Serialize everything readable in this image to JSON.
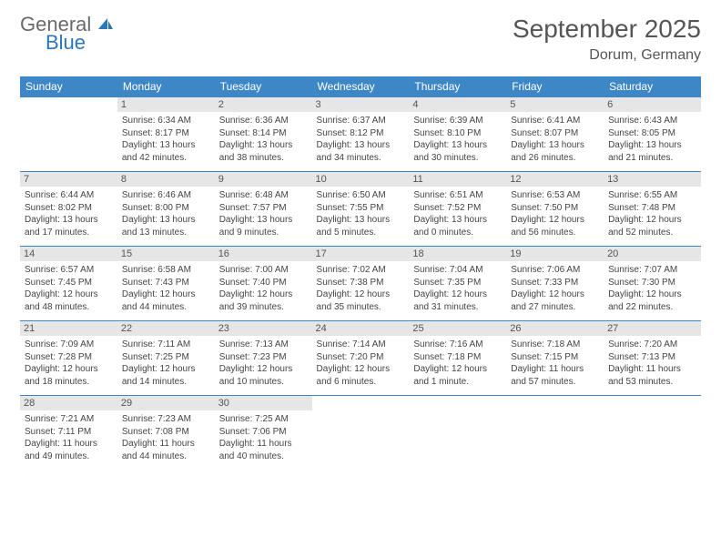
{
  "brand": {
    "line1": "General",
    "line2": "Blue",
    "color_gray": "#6a6a6a",
    "color_blue": "#2a76b8"
  },
  "header": {
    "title": "September 2025",
    "location": "Dorum, Germany"
  },
  "colors": {
    "header_bg": "#3e87c6",
    "header_fg": "#ffffff",
    "daynum_bg": "#e6e6e6",
    "border": "#3e87c6",
    "text": "#444444",
    "title": "#555555"
  },
  "dayNames": [
    "Sunday",
    "Monday",
    "Tuesday",
    "Wednesday",
    "Thursday",
    "Friday",
    "Saturday"
  ],
  "weeks": [
    [
      null,
      {
        "n": "1",
        "sr": "Sunrise: 6:34 AM",
        "ss": "Sunset: 8:17 PM",
        "d1": "Daylight: 13 hours",
        "d2": "and 42 minutes."
      },
      {
        "n": "2",
        "sr": "Sunrise: 6:36 AM",
        "ss": "Sunset: 8:14 PM",
        "d1": "Daylight: 13 hours",
        "d2": "and 38 minutes."
      },
      {
        "n": "3",
        "sr": "Sunrise: 6:37 AM",
        "ss": "Sunset: 8:12 PM",
        "d1": "Daylight: 13 hours",
        "d2": "and 34 minutes."
      },
      {
        "n": "4",
        "sr": "Sunrise: 6:39 AM",
        "ss": "Sunset: 8:10 PM",
        "d1": "Daylight: 13 hours",
        "d2": "and 30 minutes."
      },
      {
        "n": "5",
        "sr": "Sunrise: 6:41 AM",
        "ss": "Sunset: 8:07 PM",
        "d1": "Daylight: 13 hours",
        "d2": "and 26 minutes."
      },
      {
        "n": "6",
        "sr": "Sunrise: 6:43 AM",
        "ss": "Sunset: 8:05 PM",
        "d1": "Daylight: 13 hours",
        "d2": "and 21 minutes."
      }
    ],
    [
      {
        "n": "7",
        "sr": "Sunrise: 6:44 AM",
        "ss": "Sunset: 8:02 PM",
        "d1": "Daylight: 13 hours",
        "d2": "and 17 minutes."
      },
      {
        "n": "8",
        "sr": "Sunrise: 6:46 AM",
        "ss": "Sunset: 8:00 PM",
        "d1": "Daylight: 13 hours",
        "d2": "and 13 minutes."
      },
      {
        "n": "9",
        "sr": "Sunrise: 6:48 AM",
        "ss": "Sunset: 7:57 PM",
        "d1": "Daylight: 13 hours",
        "d2": "and 9 minutes."
      },
      {
        "n": "10",
        "sr": "Sunrise: 6:50 AM",
        "ss": "Sunset: 7:55 PM",
        "d1": "Daylight: 13 hours",
        "d2": "and 5 minutes."
      },
      {
        "n": "11",
        "sr": "Sunrise: 6:51 AM",
        "ss": "Sunset: 7:52 PM",
        "d1": "Daylight: 13 hours",
        "d2": "and 0 minutes."
      },
      {
        "n": "12",
        "sr": "Sunrise: 6:53 AM",
        "ss": "Sunset: 7:50 PM",
        "d1": "Daylight: 12 hours",
        "d2": "and 56 minutes."
      },
      {
        "n": "13",
        "sr": "Sunrise: 6:55 AM",
        "ss": "Sunset: 7:48 PM",
        "d1": "Daylight: 12 hours",
        "d2": "and 52 minutes."
      }
    ],
    [
      {
        "n": "14",
        "sr": "Sunrise: 6:57 AM",
        "ss": "Sunset: 7:45 PM",
        "d1": "Daylight: 12 hours",
        "d2": "and 48 minutes."
      },
      {
        "n": "15",
        "sr": "Sunrise: 6:58 AM",
        "ss": "Sunset: 7:43 PM",
        "d1": "Daylight: 12 hours",
        "d2": "and 44 minutes."
      },
      {
        "n": "16",
        "sr": "Sunrise: 7:00 AM",
        "ss": "Sunset: 7:40 PM",
        "d1": "Daylight: 12 hours",
        "d2": "and 39 minutes."
      },
      {
        "n": "17",
        "sr": "Sunrise: 7:02 AM",
        "ss": "Sunset: 7:38 PM",
        "d1": "Daylight: 12 hours",
        "d2": "and 35 minutes."
      },
      {
        "n": "18",
        "sr": "Sunrise: 7:04 AM",
        "ss": "Sunset: 7:35 PM",
        "d1": "Daylight: 12 hours",
        "d2": "and 31 minutes."
      },
      {
        "n": "19",
        "sr": "Sunrise: 7:06 AM",
        "ss": "Sunset: 7:33 PM",
        "d1": "Daylight: 12 hours",
        "d2": "and 27 minutes."
      },
      {
        "n": "20",
        "sr": "Sunrise: 7:07 AM",
        "ss": "Sunset: 7:30 PM",
        "d1": "Daylight: 12 hours",
        "d2": "and 22 minutes."
      }
    ],
    [
      {
        "n": "21",
        "sr": "Sunrise: 7:09 AM",
        "ss": "Sunset: 7:28 PM",
        "d1": "Daylight: 12 hours",
        "d2": "and 18 minutes."
      },
      {
        "n": "22",
        "sr": "Sunrise: 7:11 AM",
        "ss": "Sunset: 7:25 PM",
        "d1": "Daylight: 12 hours",
        "d2": "and 14 minutes."
      },
      {
        "n": "23",
        "sr": "Sunrise: 7:13 AM",
        "ss": "Sunset: 7:23 PM",
        "d1": "Daylight: 12 hours",
        "d2": "and 10 minutes."
      },
      {
        "n": "24",
        "sr": "Sunrise: 7:14 AM",
        "ss": "Sunset: 7:20 PM",
        "d1": "Daylight: 12 hours",
        "d2": "and 6 minutes."
      },
      {
        "n": "25",
        "sr": "Sunrise: 7:16 AM",
        "ss": "Sunset: 7:18 PM",
        "d1": "Daylight: 12 hours",
        "d2": "and 1 minute."
      },
      {
        "n": "26",
        "sr": "Sunrise: 7:18 AM",
        "ss": "Sunset: 7:15 PM",
        "d1": "Daylight: 11 hours",
        "d2": "and 57 minutes."
      },
      {
        "n": "27",
        "sr": "Sunrise: 7:20 AM",
        "ss": "Sunset: 7:13 PM",
        "d1": "Daylight: 11 hours",
        "d2": "and 53 minutes."
      }
    ],
    [
      {
        "n": "28",
        "sr": "Sunrise: 7:21 AM",
        "ss": "Sunset: 7:11 PM",
        "d1": "Daylight: 11 hours",
        "d2": "and 49 minutes."
      },
      {
        "n": "29",
        "sr": "Sunrise: 7:23 AM",
        "ss": "Sunset: 7:08 PM",
        "d1": "Daylight: 11 hours",
        "d2": "and 44 minutes."
      },
      {
        "n": "30",
        "sr": "Sunrise: 7:25 AM",
        "ss": "Sunset: 7:06 PM",
        "d1": "Daylight: 11 hours",
        "d2": "and 40 minutes."
      },
      null,
      null,
      null,
      null
    ]
  ]
}
